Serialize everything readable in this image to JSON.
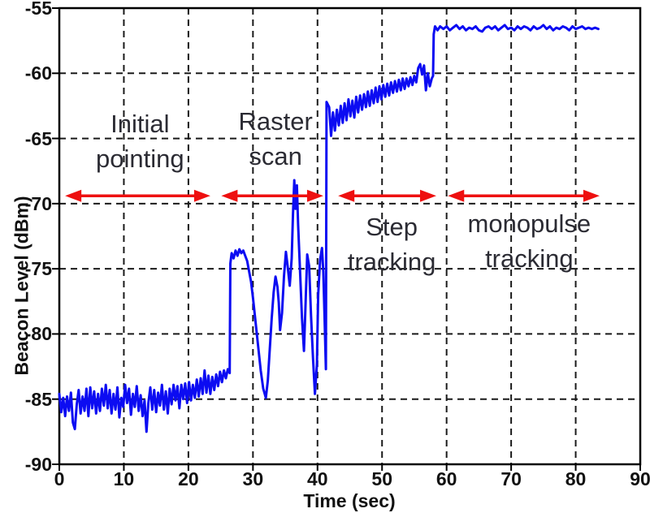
{
  "chart_data": {
    "type": "line",
    "title": "",
    "xlabel": "Time (sec)",
    "ylabel": "Beacon Level (dBm)",
    "xlim": [
      0,
      90
    ],
    "ylim": [
      -90,
      -55
    ],
    "x_ticks": [
      0,
      10,
      20,
      30,
      40,
      50,
      60,
      70,
      80,
      90
    ],
    "y_ticks": [
      -90,
      -85,
      -80,
      -75,
      -70,
      -65,
      -60,
      -55
    ],
    "grid": "dashed, both axes, interior lines only",
    "legend": "none",
    "colors": {
      "trace": "#0c0cf2",
      "grid": "#1a1a1a",
      "axis": "#000000",
      "arrow": "#ee1010",
      "annotation_text": "#2b2b33",
      "tick_text": "#111111",
      "background": "#ffffff"
    },
    "series": [
      {
        "name": "beacon_level",
        "points": [
          [
            0,
            -84.6
          ],
          [
            0.3,
            -86
          ],
          [
            0.6,
            -84.9
          ],
          [
            0.9,
            -86.3
          ],
          [
            1.2,
            -84.8
          ],
          [
            1.5,
            -85.9
          ],
          [
            1.8,
            -84.5
          ],
          [
            2.1,
            -86.8
          ],
          [
            2.4,
            -87.3
          ],
          [
            2.7,
            -85.4
          ],
          [
            3,
            -84.3
          ],
          [
            3.3,
            -86.1
          ],
          [
            3.6,
            -84.8
          ],
          [
            3.9,
            -85.9
          ],
          [
            4.2,
            -84.2
          ],
          [
            4.5,
            -86.3
          ],
          [
            4.8,
            -84.1
          ],
          [
            5.1,
            -85.7
          ],
          [
            5.4,
            -84.4
          ],
          [
            5.7,
            -86.1
          ],
          [
            6,
            -84.6
          ],
          [
            6.3,
            -85.9
          ],
          [
            6.6,
            -84.2
          ],
          [
            6.9,
            -85.5
          ],
          [
            7.2,
            -83.9
          ],
          [
            7.5,
            -85.7
          ],
          [
            7.8,
            -84.3
          ],
          [
            8.1,
            -86.1
          ],
          [
            8.4,
            -84.6
          ],
          [
            8.7,
            -85.8
          ],
          [
            9,
            -84.1
          ],
          [
            9.3,
            -86.4
          ],
          [
            9.6,
            -84.9
          ],
          [
            9.9,
            -85.6
          ],
          [
            10.2,
            -83.9
          ],
          [
            10.5,
            -85.3
          ],
          [
            10.8,
            -84.2
          ],
          [
            11.1,
            -86.2
          ],
          [
            11.4,
            -84.6
          ],
          [
            11.7,
            -85.6
          ],
          [
            12,
            -84
          ],
          [
            12.3,
            -85.9
          ],
          [
            12.6,
            -84.7
          ],
          [
            12.9,
            -86.3
          ],
          [
            13.2,
            -85.1
          ],
          [
            13.5,
            -87.5
          ],
          [
            13.8,
            -85.3
          ],
          [
            14.1,
            -84.1
          ],
          [
            14.4,
            -85.8
          ],
          [
            14.7,
            -84.3
          ],
          [
            15,
            -86
          ],
          [
            15.3,
            -84.5
          ],
          [
            15.6,
            -85.5
          ],
          [
            15.9,
            -83.9
          ],
          [
            16.2,
            -85.8
          ],
          [
            16.5,
            -84.4
          ],
          [
            16.8,
            -86.1
          ],
          [
            17.1,
            -84.2
          ],
          [
            17.4,
            -85.4
          ],
          [
            17.7,
            -83.9
          ],
          [
            18,
            -85.1
          ],
          [
            18.3,
            -84
          ],
          [
            18.6,
            -85.7
          ],
          [
            18.9,
            -83.9
          ],
          [
            19.2,
            -85
          ],
          [
            19.5,
            -83.8
          ],
          [
            19.8,
            -85.3
          ],
          [
            20.1,
            -83.7
          ],
          [
            20.4,
            -85.1
          ],
          [
            20.7,
            -83.9
          ],
          [
            21,
            -84.9
          ],
          [
            21.3,
            -83.5
          ],
          [
            21.6,
            -84.8
          ],
          [
            21.9,
            -83.4
          ],
          [
            22.2,
            -84.6
          ],
          [
            22.5,
            -82.8
          ],
          [
            22.8,
            -84.5
          ],
          [
            23.1,
            -83.2
          ],
          [
            23.4,
            -84.6
          ],
          [
            23.7,
            -83.3
          ],
          [
            24,
            -84.3
          ],
          [
            24.3,
            -83.1
          ],
          [
            24.6,
            -84
          ],
          [
            24.9,
            -82.9
          ],
          [
            25.2,
            -83.7
          ],
          [
            25.5,
            -82.8
          ],
          [
            25.8,
            -83.4
          ],
          [
            26.1,
            -82.7
          ],
          [
            26.4,
            -83
          ],
          [
            26.5,
            -74.6
          ],
          [
            26.7,
            -73.8
          ],
          [
            27,
            -74.2
          ],
          [
            27.3,
            -73.6
          ],
          [
            27.6,
            -74
          ],
          [
            27.9,
            -73.5
          ],
          [
            28.2,
            -73.8
          ],
          [
            28.5,
            -73.6
          ],
          [
            28.8,
            -74
          ],
          [
            29.1,
            -74.4
          ],
          [
            29.4,
            -75.2
          ],
          [
            29.7,
            -76
          ],
          [
            30,
            -77.2
          ],
          [
            30.3,
            -78.6
          ],
          [
            30.6,
            -80
          ],
          [
            30.9,
            -81.4
          ],
          [
            31.2,
            -82.8
          ],
          [
            31.6,
            -84.2
          ],
          [
            32,
            -84.9
          ],
          [
            32.3,
            -83.6
          ],
          [
            32.6,
            -81.2
          ],
          [
            32.9,
            -78.8
          ],
          [
            33.2,
            -76.8
          ],
          [
            33.5,
            -75.6
          ],
          [
            33.8,
            -76.4
          ],
          [
            34,
            -77.6
          ],
          [
            34.2,
            -79.7
          ],
          [
            34.5,
            -78.4
          ],
          [
            34.8,
            -75.6
          ],
          [
            35.1,
            -73.7
          ],
          [
            35.4,
            -74.9
          ],
          [
            35.7,
            -76.3
          ],
          [
            36,
            -74.2
          ],
          [
            36.2,
            -70.8
          ],
          [
            36.4,
            -68.2
          ],
          [
            36.6,
            -70.4
          ],
          [
            36.8,
            -68.6
          ],
          [
            37,
            -71.6
          ],
          [
            37.3,
            -75.2
          ],
          [
            37.6,
            -78.8
          ],
          [
            37.9,
            -81.3
          ],
          [
            38.1,
            -78.4
          ],
          [
            38.4,
            -73.9
          ],
          [
            38.7,
            -74.8
          ],
          [
            39,
            -78.6
          ],
          [
            39.3,
            -81.8
          ],
          [
            39.6,
            -84.6
          ],
          [
            39.9,
            -82.4
          ],
          [
            40.1,
            -77
          ],
          [
            40.4,
            -74.3
          ],
          [
            40.7,
            -73.4
          ],
          [
            40.9,
            -75.2
          ],
          [
            41.1,
            -78.8
          ],
          [
            41.3,
            -82.7
          ],
          [
            41.4,
            -62.2
          ],
          [
            41.8,
            -62.6
          ],
          [
            42.1,
            -64.8
          ],
          [
            42.4,
            -63
          ],
          [
            42.7,
            -64.4
          ],
          [
            43,
            -62.8
          ],
          [
            43.3,
            -64
          ],
          [
            43.6,
            -62.5
          ],
          [
            43.9,
            -63.8
          ],
          [
            44.2,
            -62.3
          ],
          [
            44.5,
            -63.6
          ],
          [
            44.8,
            -62
          ],
          [
            45.1,
            -63.3
          ],
          [
            45.4,
            -62.1
          ],
          [
            45.7,
            -63.4
          ],
          [
            46,
            -61.8
          ],
          [
            46.3,
            -63
          ],
          [
            46.6,
            -61.7
          ],
          [
            46.9,
            -62.8
          ],
          [
            47.2,
            -61.6
          ],
          [
            47.5,
            -62.6
          ],
          [
            47.8,
            -61.4
          ],
          [
            48.1,
            -62.5
          ],
          [
            48.4,
            -61.3
          ],
          [
            48.7,
            -62.3
          ],
          [
            49,
            -61.1
          ],
          [
            49.3,
            -62.2
          ],
          [
            49.6,
            -61
          ],
          [
            49.9,
            -62
          ],
          [
            50.2,
            -60.9
          ],
          [
            50.5,
            -61.8
          ],
          [
            50.8,
            -60.8
          ],
          [
            51.1,
            -61.7
          ],
          [
            51.4,
            -60.7
          ],
          [
            51.7,
            -61.5
          ],
          [
            52,
            -60.6
          ],
          [
            52.3,
            -61.4
          ],
          [
            52.6,
            -60.5
          ],
          [
            52.9,
            -61.3
          ],
          [
            53.2,
            -60.4
          ],
          [
            53.5,
            -61.2
          ],
          [
            53.8,
            -60.4
          ],
          [
            54.1,
            -61
          ],
          [
            54.4,
            -60.3
          ],
          [
            54.7,
            -60.9
          ],
          [
            55,
            -60.2
          ],
          [
            55.3,
            -60.7
          ],
          [
            55.6,
            -59.6
          ],
          [
            55.9,
            -59.3
          ],
          [
            56.2,
            -60.1
          ],
          [
            56.5,
            -59.4
          ],
          [
            56.8,
            -61.3
          ],
          [
            57.1,
            -60
          ],
          [
            57.4,
            -61
          ],
          [
            57.7,
            -60.4
          ],
          [
            57.9,
            -60.2
          ],
          [
            58,
            -57
          ],
          [
            58.2,
            -56.4
          ],
          [
            58.6,
            -56.7
          ],
          [
            59,
            -56.4
          ],
          [
            59.5,
            -56.6
          ],
          [
            60,
            -56.4
          ],
          [
            60.5,
            -56.7
          ],
          [
            61,
            -56.5
          ],
          [
            61.5,
            -56.3
          ],
          [
            62,
            -56.6
          ],
          [
            62.5,
            -56.4
          ],
          [
            63,
            -56.7
          ],
          [
            63.5,
            -56.5
          ],
          [
            64,
            -56.6
          ],
          [
            64.5,
            -56.4
          ],
          [
            65,
            -56.7
          ],
          [
            65.5,
            -56.8
          ],
          [
            66,
            -56.5
          ],
          [
            66.5,
            -56.4
          ],
          [
            67,
            -56.6
          ],
          [
            67.5,
            -56.4
          ],
          [
            68,
            -56.7
          ],
          [
            68.5,
            -56.5
          ],
          [
            69,
            -56.3
          ],
          [
            69.5,
            -56.6
          ],
          [
            70,
            -56.5
          ],
          [
            70.5,
            -56.7
          ],
          [
            71,
            -56.4
          ],
          [
            71.5,
            -56.6
          ],
          [
            72,
            -56.4
          ],
          [
            72.5,
            -56.5
          ],
          [
            73,
            -56.7
          ],
          [
            73.5,
            -56.4
          ],
          [
            74,
            -56.6
          ],
          [
            74.5,
            -56.5
          ],
          [
            75,
            -56.3
          ],
          [
            75.5,
            -56.6
          ],
          [
            76,
            -56.4
          ],
          [
            76.5,
            -56.7
          ],
          [
            77,
            -56.5
          ],
          [
            77.5,
            -56.6
          ],
          [
            78,
            -56.4
          ],
          [
            78.5,
            -56.5
          ],
          [
            79,
            -56.7
          ],
          [
            79.5,
            -56.4
          ],
          [
            80,
            -56.6
          ],
          [
            80.5,
            -56.5
          ],
          [
            81,
            -56.4
          ],
          [
            81.5,
            -56.6
          ],
          [
            82,
            -56.5
          ],
          [
            82.5,
            -56.6
          ],
          [
            83,
            -56.5
          ],
          [
            83.5,
            -56.6
          ]
        ]
      }
    ],
    "phase_arrows": [
      {
        "name": "initial-pointing-span",
        "t_start": 0.9,
        "t_end": 23.4,
        "dbm": -69.4
      },
      {
        "name": "raster-scan-span",
        "t_start": 25.1,
        "t_end": 40.9,
        "dbm": -69.4
      },
      {
        "name": "step-tracking-span",
        "t_start": 43.2,
        "t_end": 58.4,
        "dbm": -69.4
      },
      {
        "name": "monopulse-tracking-span",
        "t_start": 60.2,
        "t_end": 83.7,
        "dbm": -69.4
      }
    ],
    "phase_labels": [
      {
        "name": "initial-pointing-label",
        "lines": [
          "Initial",
          "pointing"
        ],
        "t": 12.5,
        "dbm": -65.2
      },
      {
        "name": "raster-scan-label",
        "lines": [
          "Raster",
          "scan"
        ],
        "t": 33.5,
        "dbm": -65.0
      },
      {
        "name": "step-tracking-label",
        "lines": [
          "Step",
          "tracking"
        ],
        "t": 51.5,
        "dbm": -73.1
      },
      {
        "name": "monopulse-tracking-label",
        "lines": [
          "monopulse",
          "tracking"
        ],
        "t": 72.8,
        "dbm": -72.9
      }
    ]
  }
}
